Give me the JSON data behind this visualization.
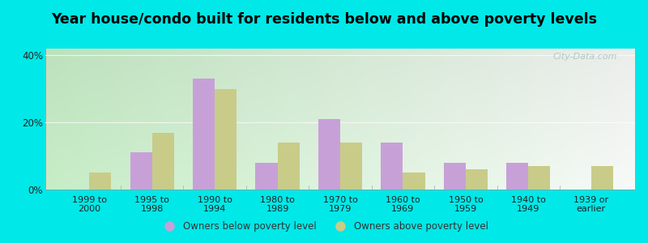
{
  "categories": [
    "1999 to\n2000",
    "1995 to\n1998",
    "1990 to\n1994",
    "1980 to\n1989",
    "1970 to\n1979",
    "1960 to\n1969",
    "1950 to\n1959",
    "1940 to\n1949",
    "1939 or\nearlier"
  ],
  "below_poverty": [
    0,
    11,
    33,
    8,
    21,
    14,
    8,
    8,
    0
  ],
  "above_poverty": [
    5,
    17,
    30,
    14,
    14,
    5,
    6,
    7,
    7
  ],
  "below_color": "#c8a0d8",
  "above_color": "#c8cc88",
  "title": "Year house/condo built for residents below and above poverty levels",
  "title_fontsize": 12.5,
  "legend_below": "Owners below poverty level",
  "legend_above": "Owners above poverty level",
  "ylim": [
    0,
    42
  ],
  "yticks": [
    0,
    20,
    40
  ],
  "ytick_labels": [
    "0%",
    "20%",
    "40%"
  ],
  "bar_width": 0.35,
  "background_outer": "#00e8e8",
  "watermark": "City-Data.com"
}
